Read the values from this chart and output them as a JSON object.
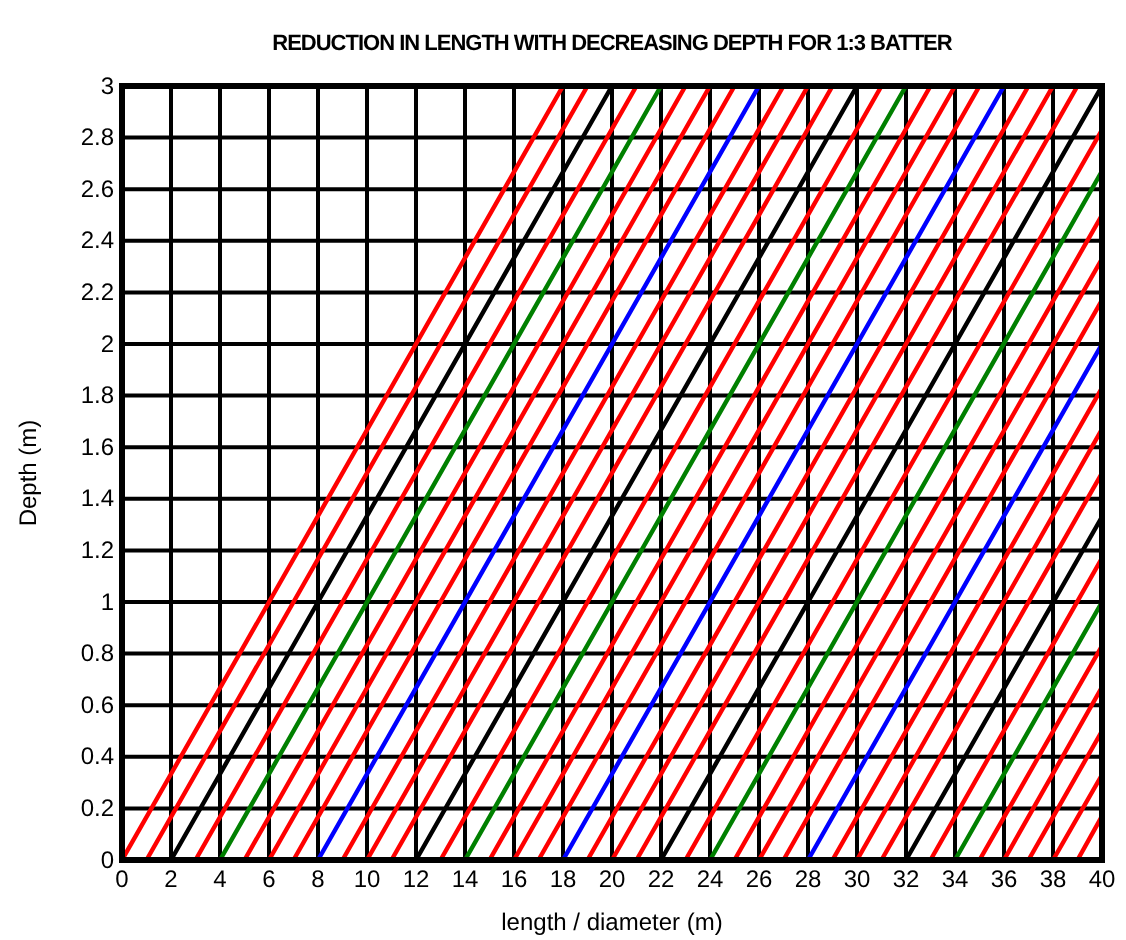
{
  "chart_data": {
    "type": "line",
    "title": "REDUCTION IN LENGTH WITH DECREASING DEPTH FOR 1:3 BATTER",
    "xlabel": "length / diameter (m)",
    "ylabel": "Depth (m)",
    "xlim": [
      0,
      40
    ],
    "xticks": [
      0,
      2,
      4,
      6,
      8,
      10,
      12,
      14,
      16,
      18,
      20,
      22,
      24,
      26,
      28,
      30,
      32,
      34,
      36,
      38,
      40
    ],
    "ylim": [
      0,
      3
    ],
    "yticks": [
      0,
      0.2,
      0.4,
      0.6,
      0.8,
      1,
      1.2,
      1.4,
      1.6,
      1.8,
      2,
      2.2,
      2.4,
      2.6,
      2.8,
      3
    ],
    "grid": true,
    "marker": "none",
    "line_style": "solid",
    "series": [
      {
        "color": "#ff0000",
        "x": [
          0,
          18
        ],
        "values": [
          0,
          3
        ]
      },
      {
        "color": "#ff0000",
        "x": [
          1,
          19
        ],
        "values": [
          0,
          3
        ]
      },
      {
        "color": "#000000",
        "x": [
          2,
          20
        ],
        "values": [
          0,
          3
        ]
      },
      {
        "color": "#ff0000",
        "x": [
          3,
          21
        ],
        "values": [
          0,
          3
        ]
      },
      {
        "color": "#008000",
        "x": [
          4,
          22
        ],
        "values": [
          0,
          3
        ]
      },
      {
        "color": "#ff0000",
        "x": [
          5,
          23
        ],
        "values": [
          0,
          3
        ]
      },
      {
        "color": "#ff0000",
        "x": [
          6,
          24
        ],
        "values": [
          0,
          3
        ]
      },
      {
        "color": "#ff0000",
        "x": [
          7,
          25
        ],
        "values": [
          0,
          3
        ]
      },
      {
        "color": "#0000ff",
        "x": [
          8,
          26
        ],
        "values": [
          0,
          3
        ]
      },
      {
        "color": "#ff0000",
        "x": [
          9,
          27
        ],
        "values": [
          0,
          3
        ]
      },
      {
        "color": "#ff0000",
        "x": [
          10,
          28
        ],
        "values": [
          0,
          3
        ]
      },
      {
        "color": "#ff0000",
        "x": [
          11,
          29
        ],
        "values": [
          0,
          3
        ]
      },
      {
        "color": "#000000",
        "x": [
          12,
          30
        ],
        "values": [
          0,
          3
        ]
      },
      {
        "color": "#ff0000",
        "x": [
          13,
          31
        ],
        "values": [
          0,
          3
        ]
      },
      {
        "color": "#008000",
        "x": [
          14,
          32
        ],
        "values": [
          0,
          3
        ]
      },
      {
        "color": "#ff0000",
        "x": [
          15,
          33
        ],
        "values": [
          0,
          3
        ]
      },
      {
        "color": "#ff0000",
        "x": [
          16,
          34
        ],
        "values": [
          0,
          3
        ]
      },
      {
        "color": "#ff0000",
        "x": [
          17,
          35
        ],
        "values": [
          0,
          3
        ]
      },
      {
        "color": "#0000ff",
        "x": [
          18,
          36
        ],
        "values": [
          0,
          3
        ]
      },
      {
        "color": "#ff0000",
        "x": [
          19,
          37
        ],
        "values": [
          0,
          3
        ]
      },
      {
        "color": "#ff0000",
        "x": [
          20,
          38
        ],
        "values": [
          0,
          3
        ]
      },
      {
        "color": "#ff0000",
        "x": [
          21,
          39
        ],
        "values": [
          0,
          3
        ]
      },
      {
        "color": "#000000",
        "x": [
          22,
          40
        ],
        "values": [
          0,
          3
        ]
      },
      {
        "color": "#ff0000",
        "x": [
          23,
          40
        ],
        "values": [
          0,
          2.83
        ]
      },
      {
        "color": "#008000",
        "x": [
          24,
          40
        ],
        "values": [
          0,
          2.67
        ]
      },
      {
        "color": "#ff0000",
        "x": [
          25,
          40
        ],
        "values": [
          0,
          2.5
        ]
      },
      {
        "color": "#ff0000",
        "x": [
          26,
          40
        ],
        "values": [
          0,
          2.33
        ]
      },
      {
        "color": "#ff0000",
        "x": [
          27,
          40
        ],
        "values": [
          0,
          2.17
        ]
      },
      {
        "color": "#0000ff",
        "x": [
          28,
          40
        ],
        "values": [
          0,
          2
        ]
      },
      {
        "color": "#ff0000",
        "x": [
          29,
          40
        ],
        "values": [
          0,
          1.83
        ]
      },
      {
        "color": "#ff0000",
        "x": [
          30,
          40
        ],
        "values": [
          0,
          1.67
        ]
      },
      {
        "color": "#ff0000",
        "x": [
          31,
          40
        ],
        "values": [
          0,
          1.5
        ]
      },
      {
        "color": "#000000",
        "x": [
          32,
          40
        ],
        "values": [
          0,
          1.33
        ]
      },
      {
        "color": "#ff0000",
        "x": [
          33,
          40
        ],
        "values": [
          0,
          1.17
        ]
      },
      {
        "color": "#008000",
        "x": [
          34,
          40
        ],
        "values": [
          0,
          1
        ]
      },
      {
        "color": "#ff0000",
        "x": [
          35,
          40
        ],
        "values": [
          0,
          0.83
        ]
      },
      {
        "color": "#ff0000",
        "x": [
          36,
          40
        ],
        "values": [
          0,
          0.67
        ]
      },
      {
        "color": "#ff0000",
        "x": [
          37,
          40
        ],
        "values": [
          0,
          0.5
        ]
      },
      {
        "color": "#ff0000",
        "x": [
          38,
          40
        ],
        "values": [
          0,
          0.33
        ]
      },
      {
        "color": "#ff0000",
        "x": [
          39,
          40
        ],
        "values": [
          0,
          0.17
        ]
      }
    ]
  }
}
